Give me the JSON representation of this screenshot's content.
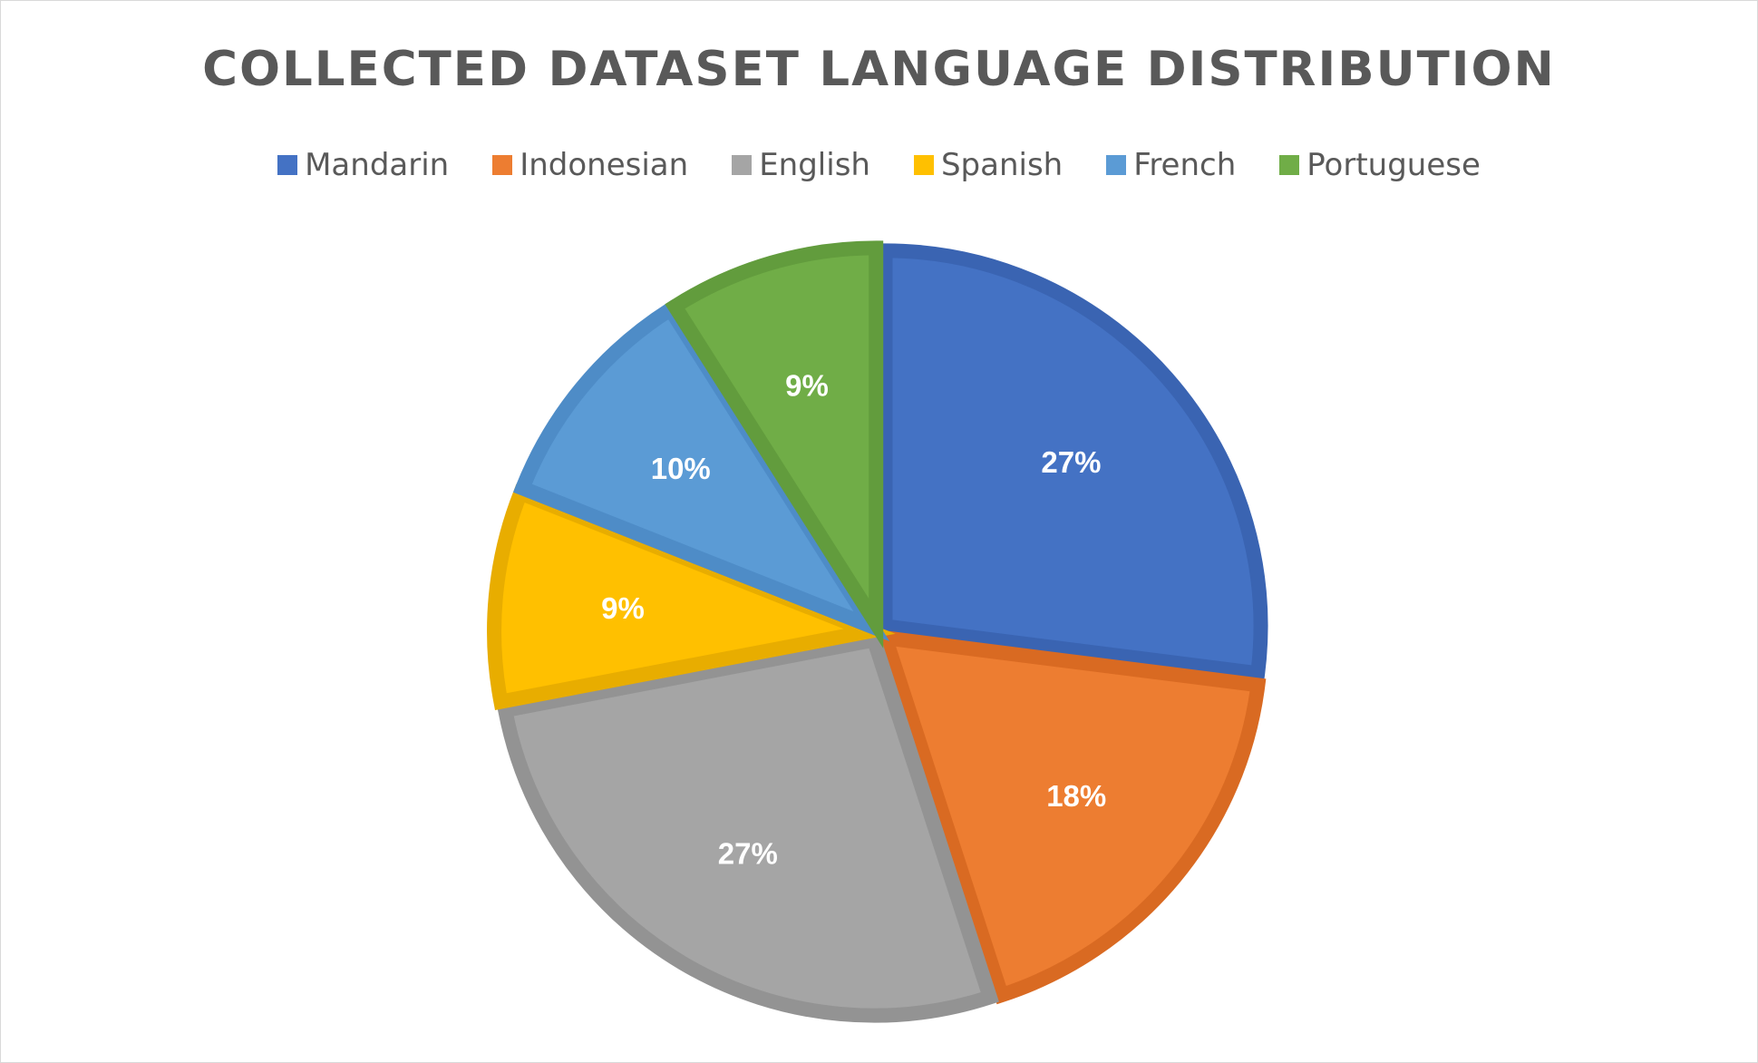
{
  "chart_data": {
    "type": "pie",
    "title": "COLLECTED DATASET LANGUAGE DISTRIBUTION",
    "legend_position": "top",
    "categories": [
      "Mandarin",
      "Indonesian",
      "English",
      "Spanish",
      "French",
      "Portuguese"
    ],
    "values": [
      27,
      18,
      27,
      9,
      10,
      9
    ],
    "labels": [
      "27%",
      "18%",
      "27%",
      "9%",
      "10%",
      "9%"
    ],
    "colors": [
      "#4472C4",
      "#ED7D31",
      "#A5A5A5",
      "#FFC000",
      "#5B9BD5",
      "#70AD47"
    ],
    "border_colors": [
      "#3A64B2",
      "#D96A22",
      "#939393",
      "#E8AD00",
      "#4E8CC7",
      "#629C3D"
    ]
  }
}
